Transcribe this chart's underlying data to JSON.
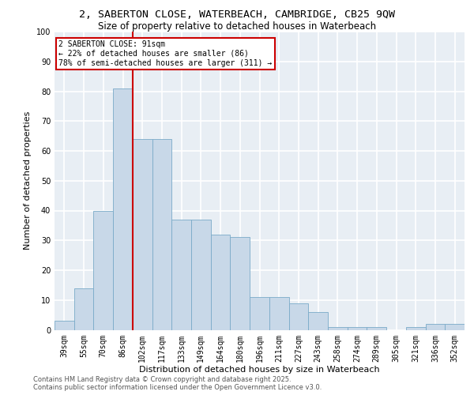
{
  "title_line1": "2, SABERTON CLOSE, WATERBEACH, CAMBRIDGE, CB25 9QW",
  "title_line2": "Size of property relative to detached houses in Waterbeach",
  "xlabel": "Distribution of detached houses by size in Waterbeach",
  "ylabel": "Number of detached properties",
  "categories": [
    "39sqm",
    "55sqm",
    "70sqm",
    "86sqm",
    "102sqm",
    "117sqm",
    "133sqm",
    "149sqm",
    "164sqm",
    "180sqm",
    "196sqm",
    "211sqm",
    "227sqm",
    "243sqm",
    "258sqm",
    "274sqm",
    "289sqm",
    "305sqm",
    "321sqm",
    "336sqm",
    "352sqm"
  ],
  "values": [
    3,
    14,
    40,
    81,
    64,
    64,
    37,
    37,
    32,
    31,
    11,
    11,
    9,
    6,
    1,
    1,
    1,
    0,
    1,
    2,
    2
  ],
  "bar_color": "#c8d8e8",
  "bar_edge_color": "#7aaac8",
  "red_line_x": 3.5,
  "red_line_label1": "2 SABERTON CLOSE: 91sqm",
  "red_line_label2": "← 22% of detached houses are smaller (86)",
  "red_line_label3": "78% of semi-detached houses are larger (311) →",
  "annotation_box_color": "#cc0000",
  "ylim": [
    0,
    100
  ],
  "yticks": [
    0,
    10,
    20,
    30,
    40,
    50,
    60,
    70,
    80,
    90,
    100
  ],
  "background_color": "#e8eef4",
  "grid_color": "#ffffff",
  "footer_line1": "Contains HM Land Registry data © Crown copyright and database right 2025.",
  "footer_line2": "Contains public sector information licensed under the Open Government Licence v3.0.",
  "title1_fontsize": 9.5,
  "title2_fontsize": 8.5,
  "axis_label_fontsize": 8,
  "tick_fontsize": 7,
  "footer_fontsize": 6,
  "annot_fontsize": 7
}
